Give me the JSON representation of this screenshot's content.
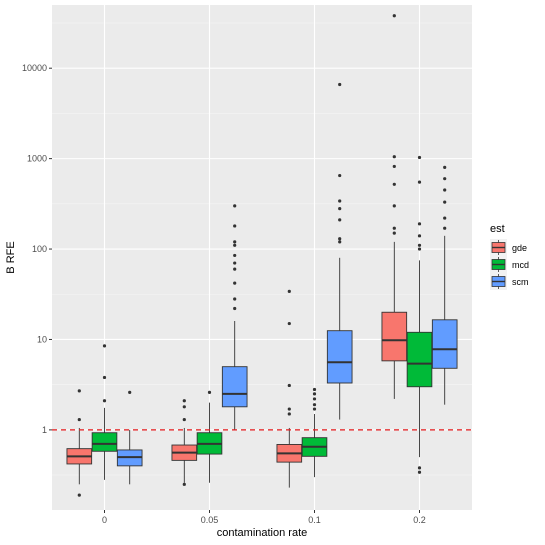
{
  "chart_data": {
    "type": "box",
    "xlabel": "contamination rate",
    "ylabel": "B RFE",
    "y_scale": "log10",
    "ylim": [
      0.13,
      50000
    ],
    "y_ticks": [
      {
        "value": 1,
        "label": "1"
      },
      {
        "value": 10,
        "label": "10"
      },
      {
        "value": 100,
        "label": "100"
      },
      {
        "value": 1000,
        "label": "1000"
      },
      {
        "value": 10000,
        "label": "10000"
      }
    ],
    "categories": [
      "0",
      "0.05",
      "0.1",
      "0.2"
    ],
    "reference_line": {
      "value": 1,
      "style": "dashed",
      "color": "#e41a1c"
    },
    "grid": true,
    "legend": {
      "title": "est",
      "position": "right",
      "entries": [
        {
          "name": "gde",
          "color": "#F8766D"
        },
        {
          "name": "mcd",
          "color": "#00BA38"
        },
        {
          "name": "scm",
          "color": "#619CFF"
        }
      ]
    },
    "series": [
      {
        "name": "gde",
        "color": "#F8766D",
        "boxes": [
          {
            "category": "0",
            "whisker_low": 0.25,
            "q1": 0.42,
            "median": 0.51,
            "q3": 0.62,
            "whisker_high": 1.05,
            "outliers": [
              1.3,
              2.7,
              0.19
            ]
          },
          {
            "category": "0.05",
            "whisker_low": 0.26,
            "q1": 0.46,
            "median": 0.56,
            "q3": 0.68,
            "whisker_high": 1.05,
            "outliers": [
              1.3,
              1.8,
              2.1,
              0.25
            ]
          },
          {
            "category": "0.1",
            "whisker_low": 0.23,
            "q1": 0.44,
            "median": 0.55,
            "q3": 0.69,
            "whisker_high": 1.05,
            "outliers": [
              1.5,
              1.7,
              3.1,
              15,
              34
            ]
          },
          {
            "category": "0.2",
            "whisker_low": 2.2,
            "q1": 5.8,
            "median": 9.8,
            "q3": 20,
            "whisker_high": 120,
            "outliers": [
              150,
              170,
              300,
              520,
              820,
              1050,
              38000
            ]
          }
        ]
      },
      {
        "name": "mcd",
        "color": "#00BA38",
        "boxes": [
          {
            "category": "0",
            "whisker_low": 0.28,
            "q1": 0.58,
            "median": 0.7,
            "q3": 0.93,
            "whisker_high": 1.75,
            "outliers": [
              2.1,
              3.8,
              8.5
            ]
          },
          {
            "category": "0.05",
            "whisker_low": 0.26,
            "q1": 0.54,
            "median": 0.7,
            "q3": 0.93,
            "whisker_high": 2,
            "outliers": [
              2.6
            ]
          },
          {
            "category": "0.1",
            "whisker_low": 0.3,
            "q1": 0.51,
            "median": 0.65,
            "q3": 0.82,
            "whisker_high": 1.5,
            "outliers": [
              1.7,
              1.9,
              2.2,
              2.5,
              2.8
            ]
          },
          {
            "category": "0.2",
            "whisker_low": 0.5,
            "q1": 3,
            "median": 5.4,
            "q3": 12,
            "whisker_high": 75,
            "outliers": [
              100,
              110,
              140,
              190,
              550,
              1030,
              0.34,
              0.38
            ]
          }
        ]
      },
      {
        "name": "scm",
        "color": "#619CFF",
        "boxes": [
          {
            "category": "0",
            "whisker_low": 0.25,
            "q1": 0.4,
            "median": 0.5,
            "q3": 0.6,
            "whisker_high": 1,
            "outliers": [
              2.6
            ]
          },
          {
            "category": "0.05",
            "whisker_low": 1,
            "q1": 1.8,
            "median": 2.5,
            "q3": 5,
            "whisker_high": 16,
            "outliers": [
              22,
              28,
              42,
              60,
              70,
              85,
              110,
              120,
              180,
              300
            ]
          },
          {
            "category": "0.1",
            "whisker_low": 1.3,
            "q1": 3.3,
            "median": 5.6,
            "q3": 12.5,
            "whisker_high": 80,
            "outliers": [
              120,
              130,
              210,
              280,
              340,
              650,
              6600
            ]
          },
          {
            "category": "0.2",
            "whisker_low": 1.9,
            "q1": 4.8,
            "median": 7.8,
            "q3": 16.5,
            "whisker_high": 140,
            "outliers": [
              170,
              220,
              330,
              450,
              600,
              800
            ]
          }
        ]
      }
    ]
  }
}
